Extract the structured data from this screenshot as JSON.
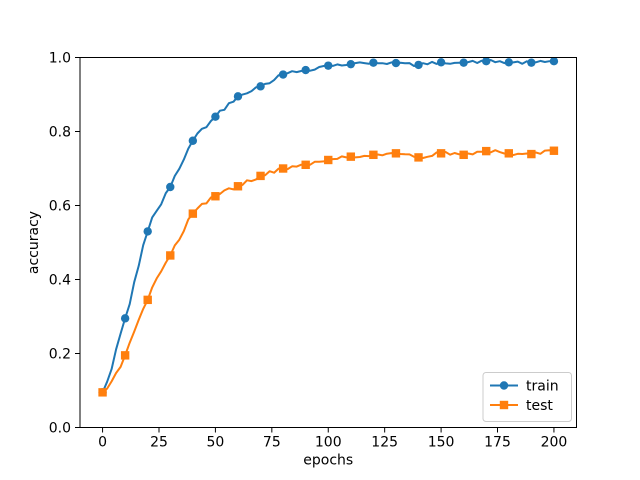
{
  "window": {
    "background": "#ffffff",
    "text_color": "#000000",
    "frame_color": "#000000",
    "legend_border_color": "#cccccc"
  },
  "chart_data": {
    "type": "line",
    "title": "",
    "xlabel": "epochs",
    "ylabel": "accuracy",
    "xlim": [
      -10,
      210
    ],
    "ylim": [
      0.0,
      1.0
    ],
    "grid": false,
    "legend": {
      "position": "lower right",
      "items": [
        "train",
        "test"
      ]
    },
    "x_ticks": [
      0,
      25,
      50,
      75,
      100,
      125,
      150,
      175,
      200
    ],
    "x_tick_labels": [
      "0",
      "25",
      "50",
      "75",
      "100",
      "125",
      "150",
      "175",
      "200"
    ],
    "y_ticks": [
      0.0,
      0.2,
      0.4,
      0.6,
      0.8,
      1.0
    ],
    "y_tick_labels": [
      "0.0",
      "0.2",
      "0.4",
      "0.6",
      "0.8",
      "1.0"
    ],
    "marker_x": [
      0,
      10,
      20,
      30,
      40,
      50,
      60,
      70,
      80,
      90,
      100,
      110,
      120,
      130,
      140,
      150,
      160,
      170,
      180,
      190,
      200
    ],
    "series": [
      {
        "name": "train",
        "color": "#1f77b4",
        "marker": "circle",
        "values": [
          0.095,
          0.295,
          0.53,
          0.65,
          0.775,
          0.84,
          0.895,
          0.922,
          0.954,
          0.966,
          0.978,
          0.982,
          0.986,
          0.985,
          0.98,
          0.987,
          0.986,
          0.99,
          0.987,
          0.986,
          0.99
        ]
      },
      {
        "name": "test",
        "color": "#ff7f0e",
        "marker": "square",
        "values": [
          0.095,
          0.195,
          0.345,
          0.465,
          0.578,
          0.625,
          0.652,
          0.68,
          0.7,
          0.71,
          0.723,
          0.732,
          0.737,
          0.741,
          0.73,
          0.741,
          0.737,
          0.747,
          0.741,
          0.739,
          0.748
        ]
      }
    ],
    "style": {
      "line_width": 2,
      "marker_size": 8.4,
      "noise_amplitude_base": 0.004,
      "noise_slope_factor": 0.35,
      "noise_seed": 42,
      "line_sample_step": 2
    }
  }
}
